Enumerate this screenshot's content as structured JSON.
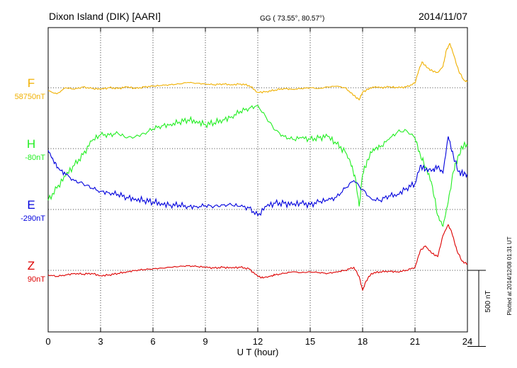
{
  "header": {
    "station": "Dixon Island (DIK)  [AARI]",
    "coords": "GG ( 73.55°,  80.57°)",
    "date": "2014/11/07"
  },
  "footer": {
    "plotted": "Plotted at 2014/12/08 01:31  UT"
  },
  "chart_data": {
    "type": "line",
    "title": "Dixon Island (DIK)  [AARI]",
    "xlabel": "U T (hour)",
    "ylabel": "",
    "xlim": [
      0,
      24
    ],
    "xticks": [
      0,
      3,
      6,
      9,
      12,
      15,
      18,
      21,
      24
    ],
    "grid": true,
    "scale_bar": {
      "value": 500,
      "label": "500 nT"
    },
    "y_span_nT": 2000,
    "series": [
      {
        "name": "F",
        "baseline": "58750nT",
        "baseline_value": 58750,
        "color": "#f0b000",
        "x": [
          0,
          0.5,
          1,
          1.5,
          2,
          2.5,
          3,
          3.5,
          4,
          4.5,
          5,
          5.5,
          6,
          6.5,
          7,
          7.5,
          8,
          8.5,
          9,
          9.5,
          10,
          10.5,
          11,
          11.5,
          12,
          12.5,
          13,
          13.5,
          14,
          14.5,
          15,
          15.5,
          16,
          16.5,
          17,
          17.2,
          17.5,
          17.8,
          18,
          18.3,
          18.6,
          19,
          19.5,
          20,
          20.5,
          21,
          21.2,
          21.4,
          21.7,
          22,
          22.3,
          22.6,
          22.8,
          23,
          23.2,
          23.5,
          23.8,
          24
        ],
        "values": [
          58730,
          58710,
          58750,
          58740,
          58755,
          58745,
          58740,
          58750,
          58745,
          58755,
          58745,
          58755,
          58760,
          58765,
          58770,
          58775,
          58785,
          58780,
          58775,
          58770,
          58775,
          58770,
          58775,
          58765,
          58720,
          58725,
          58735,
          58745,
          58740,
          58745,
          58750,
          58745,
          58755,
          58760,
          58750,
          58730,
          58700,
          58670,
          58720,
          58740,
          58755,
          58750,
          58755,
          58750,
          58755,
          58780,
          58860,
          58920,
          58880,
          58860,
          58850,
          58890,
          59000,
          59040,
          58970,
          58860,
          58800,
          58790
        ]
      },
      {
        "name": "H",
        "baseline": "-80nT",
        "baseline_value": -80,
        "color": "#22ee22",
        "x": [
          0,
          0.5,
          1,
          1.5,
          2,
          2.5,
          3,
          3.5,
          4,
          4.5,
          5,
          5.5,
          6,
          6.5,
          7,
          7.5,
          8,
          8.5,
          9,
          9.5,
          10,
          10.5,
          11,
          11.5,
          12,
          12.5,
          13,
          13.5,
          14,
          14.5,
          15,
          15.5,
          16,
          16.5,
          17,
          17.3,
          17.6,
          17.8,
          18,
          18.3,
          18.6,
          19,
          19.5,
          20,
          20.5,
          21,
          21.3,
          21.6,
          22,
          22.3,
          22.6,
          22.9,
          23.2,
          23.5,
          23.8,
          24
        ],
        "values": [
          -420,
          -340,
          -260,
          -190,
          -120,
          -30,
          10,
          10,
          20,
          -10,
          0,
          20,
          50,
          70,
          80,
          95,
          110,
          100,
          80,
          90,
          110,
          130,
          165,
          185,
          205,
          120,
          40,
          0,
          -20,
          -10,
          -20,
          -10,
          0,
          -50,
          -100,
          -170,
          -280,
          -460,
          -250,
          -150,
          -80,
          -70,
          -20,
          30,
          40,
          -10,
          -120,
          -200,
          -330,
          -520,
          -590,
          -430,
          -230,
          -120,
          -50,
          -60
        ]
      },
      {
        "name": "E",
        "baseline": "-290nT",
        "baseline_value": -290,
        "color": "#0000dd",
        "x": [
          0,
          0.3,
          0.6,
          1,
          1.5,
          2,
          2.5,
          3,
          3.5,
          4,
          4.5,
          5,
          5.5,
          6,
          6.5,
          7,
          7.5,
          8,
          8.5,
          9,
          9.5,
          10,
          10.5,
          11,
          11.5,
          12,
          12.5,
          13,
          13.5,
          14,
          14.5,
          15,
          15.5,
          16,
          16.5,
          17,
          17.5,
          18,
          18.5,
          19,
          19.5,
          20,
          20.5,
          21,
          21.3,
          21.6,
          22,
          22.3,
          22.6,
          22.9,
          23.2,
          23.5,
          23.8,
          24
        ],
        "values": [
          100,
          30,
          -20,
          -60,
          -100,
          -120,
          -150,
          -170,
          -180,
          -190,
          -210,
          -220,
          -230,
          -240,
          -250,
          -260,
          -260,
          -270,
          -270,
          -265,
          -270,
          -260,
          -260,
          -270,
          -280,
          -330,
          -270,
          -250,
          -250,
          -260,
          -250,
          -260,
          -240,
          -230,
          -210,
          -150,
          -100,
          -160,
          -220,
          -230,
          -200,
          -190,
          -150,
          -120,
          0,
          -30,
          -30,
          -10,
          -50,
          190,
          60,
          -40,
          -60,
          -60
        ]
      },
      {
        "name": "Z",
        "baseline": "90nT",
        "baseline_value": 90,
        "color": "#dd0000",
        "x": [
          0,
          0.5,
          1,
          1.5,
          2,
          2.5,
          3,
          3.5,
          4,
          4.5,
          5,
          5.5,
          6,
          6.5,
          7,
          7.5,
          8,
          8.5,
          9,
          9.5,
          10,
          10.5,
          11,
          11.5,
          12,
          12.3,
          12.8,
          13,
          13.5,
          14,
          14.5,
          15,
          15.5,
          16,
          16.5,
          17,
          17.5,
          17.8,
          18,
          18.2,
          18.5,
          19,
          19.5,
          20,
          20.5,
          21,
          21.3,
          21.6,
          22,
          22.3,
          22.6,
          22.9,
          23.1,
          23.4,
          23.7,
          24
        ],
        "values": [
          60,
          50,
          60,
          70,
          65,
          70,
          55,
          60,
          70,
          80,
          90,
          95,
          100,
          105,
          110,
          115,
          120,
          115,
          110,
          105,
          110,
          105,
          110,
          100,
          50,
          40,
          55,
          60,
          70,
          80,
          75,
          80,
          75,
          70,
          80,
          90,
          110,
          50,
          -40,
          20,
          70,
          80,
          85,
          80,
          90,
          110,
          220,
          250,
          200,
          180,
          320,
          390,
          340,
          220,
          150,
          130
        ]
      }
    ]
  }
}
